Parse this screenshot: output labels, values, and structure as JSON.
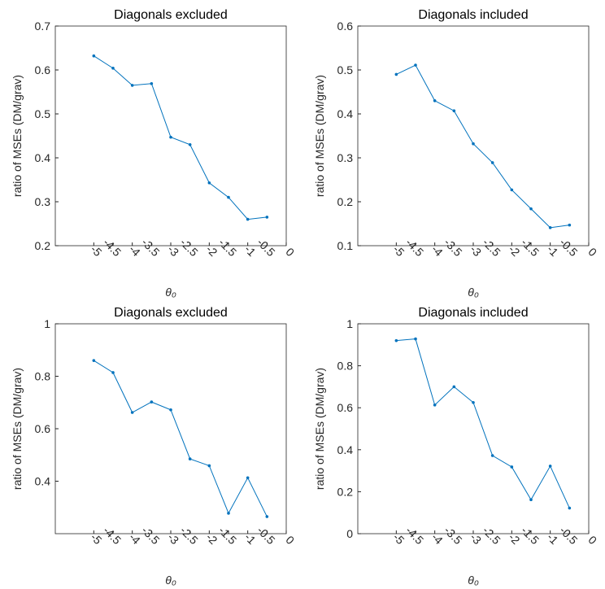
{
  "chart_data": [
    {
      "type": "line",
      "title": "Diagonals excluded",
      "xlabel": "θ₀",
      "ylabel": "ratio of MSEs (DM/grav)",
      "x": [
        -5,
        -4.5,
        -4,
        -3.5,
        -3,
        -2.5,
        -2,
        -1.5,
        -1,
        -0.5
      ],
      "series": [
        {
          "color": "#0072bd",
          "values": [
            0.632,
            0.604,
            0.565,
            0.569,
            0.447,
            0.43,
            0.343,
            0.31,
            0.26,
            0.265
          ]
        }
      ],
      "xlim": [
        -6,
        0
      ],
      "xticks": [
        -5,
        -4.5,
        -4,
        -3.5,
        -3,
        -2.5,
        -2,
        -1.5,
        -1,
        -0.5,
        0
      ],
      "ylim": [
        0.2,
        0.7
      ],
      "yticks": [
        0.2,
        0.3,
        0.4,
        0.5,
        0.6,
        0.7
      ]
    },
    {
      "type": "line",
      "title": "Diagonals included",
      "xlabel": "θ₀",
      "ylabel": "ratio of MSEs (DM/grav)",
      "x": [
        -5,
        -4.5,
        -4,
        -3.5,
        -3,
        -2.5,
        -2,
        -1.5,
        -1,
        -0.5
      ],
      "series": [
        {
          "color": "#0072bd",
          "values": [
            0.49,
            0.511,
            0.43,
            0.407,
            0.332,
            0.289,
            0.227,
            0.184,
            0.141,
            0.147
          ]
        }
      ],
      "xlim": [
        -6,
        0
      ],
      "xticks": [
        -5,
        -4.5,
        -4,
        -3.5,
        -3,
        -2.5,
        -2,
        -1.5,
        -1,
        -0.5,
        0
      ],
      "ylim": [
        0.1,
        0.6
      ],
      "yticks": [
        0.1,
        0.2,
        0.3,
        0.4,
        0.5,
        0.6
      ]
    },
    {
      "type": "line",
      "title": "Diagonals excluded",
      "xlabel": "θ₀",
      "ylabel": "ratio of MSEs (DM/grav)",
      "x": [
        -5,
        -4.5,
        -4,
        -3.5,
        -3,
        -2.5,
        -2,
        -1.5,
        -1,
        -0.5
      ],
      "series": [
        {
          "color": "#0072bd",
          "values": [
            0.86,
            0.814,
            0.662,
            0.702,
            0.672,
            0.485,
            0.459,
            0.278,
            0.413,
            0.265
          ]
        }
      ],
      "xlim": [
        -6,
        0
      ],
      "xticks": [
        -5,
        -4.5,
        -4,
        -3.5,
        -3,
        -2.5,
        -2,
        -1.5,
        -1,
        -0.5,
        0
      ],
      "ylim": [
        0.2,
        1
      ],
      "yticks": [
        0.4,
        0.6,
        0.8,
        1
      ]
    },
    {
      "type": "line",
      "title": "Diagonals included",
      "xlabel": "θ₀",
      "ylabel": "ratio of MSEs (DM/grav)",
      "x": [
        -5,
        -4.5,
        -4,
        -3.5,
        -3,
        -2.5,
        -2,
        -1.5,
        -1,
        -0.5
      ],
      "series": [
        {
          "color": "#0072bd",
          "values": [
            0.92,
            0.928,
            0.613,
            0.7,
            0.625,
            0.372,
            0.318,
            0.162,
            0.322,
            0.122
          ]
        }
      ],
      "xlim": [
        -6,
        0
      ],
      "xticks": [
        -5,
        -4.5,
        -4,
        -3.5,
        -3,
        -2.5,
        -2,
        -1.5,
        -1,
        -0.5,
        0
      ],
      "ylim": [
        0,
        1
      ],
      "yticks": [
        0,
        0.2,
        0.4,
        0.6,
        0.8,
        1
      ]
    }
  ]
}
